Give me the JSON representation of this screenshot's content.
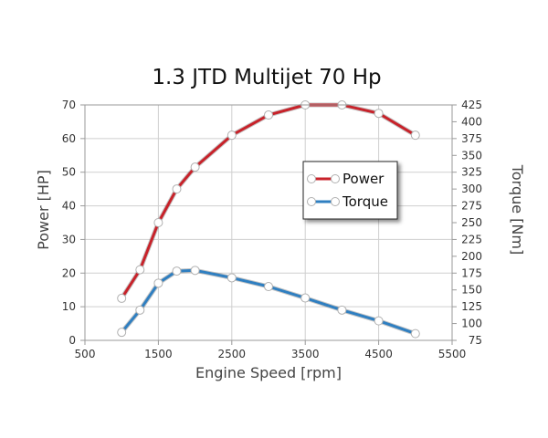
{
  "chart_data": {
    "type": "line",
    "title": "1.3 JTD Multijet 70 Hp",
    "xlabel": "Engine Speed [rpm]",
    "ylabel_left": "Power [HP]",
    "ylabel_right": "Torque [Nm]",
    "xlim": [
      500,
      5500
    ],
    "ylim_left": [
      0,
      70
    ],
    "ylim_right": [
      75,
      425
    ],
    "xticks": [
      "500",
      "1500",
      "2500",
      "3500",
      "4500",
      "5500"
    ],
    "yticks_left": [
      "0",
      "10",
      "20",
      "30",
      "40",
      "50",
      "60",
      "70"
    ],
    "yticks_right": [
      "75",
      "100",
      "125",
      "150",
      "175",
      "200",
      "225",
      "250",
      "275",
      "300",
      "325",
      "350",
      "375",
      "400",
      "425"
    ],
    "grid": true,
    "legend_position": "center-right",
    "series": [
      {
        "name": "Power",
        "axis": "left",
        "color": "#c8222a",
        "x": [
          1000,
          1250,
          1500,
          1750,
          2000,
          2500,
          3000,
          3500,
          4000,
          4500,
          5000
        ],
        "y": [
          12.5,
          21,
          35,
          45,
          51.5,
          61,
          67,
          70,
          70,
          67.5,
          61
        ]
      },
      {
        "name": "Torque",
        "axis": "right",
        "color": "#2f7fc1",
        "x": [
          1000,
          1250,
          1500,
          1750,
          2000,
          2500,
          3000,
          3500,
          4000,
          4500,
          5000
        ],
        "y": [
          87,
          120,
          160,
          178,
          179,
          168,
          155,
          138,
          120,
          104,
          85
        ]
      }
    ]
  }
}
